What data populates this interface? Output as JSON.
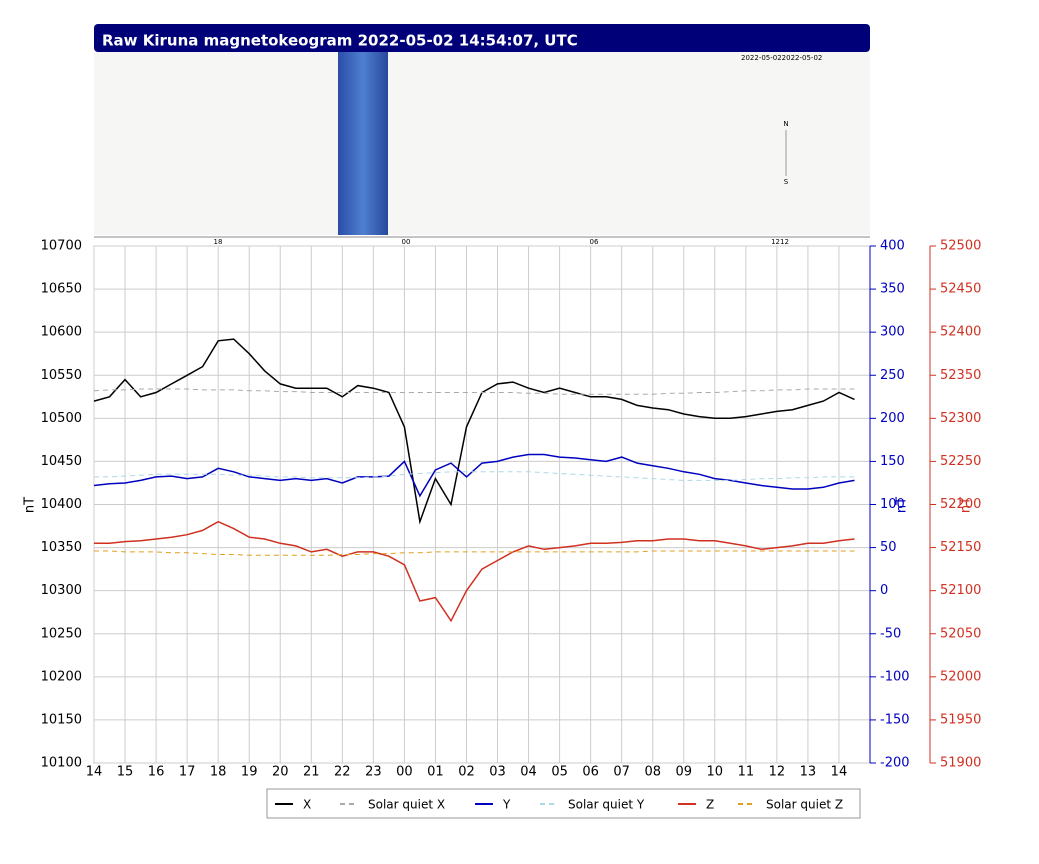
{
  "chart_data": {
    "type": "line",
    "title": "Raw Kiruna magnetokeogram 2022-05-02 14:54:07, UTC",
    "ylabel": "nT",
    "y2label": "nT",
    "y3label": "nT",
    "x": [
      0,
      0.5,
      1,
      1.5,
      2,
      2.5,
      3,
      3.5,
      4,
      4.5,
      5,
      5.5,
      6,
      6.5,
      7,
      7.5,
      8,
      8.5,
      9,
      9.5,
      10,
      10.5,
      11,
      11.5,
      12,
      12.5,
      13,
      13.5,
      14,
      14.5,
      15,
      15.5,
      16,
      16.5,
      17,
      17.5,
      18,
      18.5,
      19,
      19.5,
      20,
      20.5,
      21,
      21.5,
      22,
      22.5,
      23,
      23.5,
      24,
      24.5
    ],
    "xlim": [
      0,
      25
    ],
    "xticks": [
      {
        "value": 0,
        "label": "14"
      },
      {
        "value": 1,
        "label": "15"
      },
      {
        "value": 2,
        "label": "16"
      },
      {
        "value": 3,
        "label": "17"
      },
      {
        "value": 4,
        "label": "18"
      },
      {
        "value": 5,
        "label": "19"
      },
      {
        "value": 6,
        "label": "20"
      },
      {
        "value": 7,
        "label": "21"
      },
      {
        "value": 8,
        "label": "22"
      },
      {
        "value": 9,
        "label": "23"
      },
      {
        "value": 10,
        "label": "00"
      },
      {
        "value": 11,
        "label": "01"
      },
      {
        "value": 12,
        "label": "02"
      },
      {
        "value": 13,
        "label": "03"
      },
      {
        "value": 14,
        "label": "04"
      },
      {
        "value": 15,
        "label": "05"
      },
      {
        "value": 16,
        "label": "06"
      },
      {
        "value": 17,
        "label": "07"
      },
      {
        "value": 18,
        "label": "08"
      },
      {
        "value": 19,
        "label": "09"
      },
      {
        "value": 20,
        "label": "10"
      },
      {
        "value": 21,
        "label": "11"
      },
      {
        "value": 22,
        "label": "12"
      },
      {
        "value": 23,
        "label": "13"
      },
      {
        "value": 24,
        "label": "14"
      }
    ],
    "ylim": [
      10100,
      10700
    ],
    "yticks": [
      10100,
      10150,
      10200,
      10250,
      10300,
      10350,
      10400,
      10450,
      10500,
      10550,
      10600,
      10650,
      10700
    ],
    "y2lim": [
      -200,
      400
    ],
    "y2color": "#0000c0",
    "y2ticks": [
      -200,
      -150,
      -100,
      -50,
      0,
      50,
      100,
      150,
      200,
      250,
      300,
      350,
      400
    ],
    "y3lim": [
      51900,
      52500
    ],
    "y3color": "#d03020",
    "y3ticks": [
      51900,
      51950,
      52000,
      52050,
      52100,
      52150,
      52200,
      52250,
      52300,
      52350,
      52400,
      52450,
      52500
    ],
    "grid": true,
    "series": [
      {
        "name": "X",
        "color": "#000000",
        "axis": "y",
        "dashed": false,
        "values": [
          10520,
          10525,
          10545,
          10525,
          10530,
          10540,
          10550,
          10560,
          10590,
          10592,
          10575,
          10555,
          10540,
          10535,
          10535,
          10535,
          10525,
          10538,
          10535,
          10530,
          10490,
          10380,
          10430,
          10400,
          10490,
          10530,
          10540,
          10542,
          10535,
          10530,
          10535,
          10530,
          10525,
          10525,
          10522,
          10515,
          10512,
          10510,
          10505,
          10502,
          10500,
          10500,
          10502,
          10505,
          10508,
          10510,
          10515,
          10520,
          10530,
          10522
        ]
      },
      {
        "name": "Solar quiet X",
        "color": "#aaaaaa",
        "axis": "y",
        "dashed": true,
        "values": [
          10532,
          10533,
          10533,
          10534,
          10534,
          10534,
          10534,
          10533,
          10533,
          10533,
          10532,
          10532,
          10531,
          10531,
          10530,
          10530,
          10530,
          10530,
          10530,
          10530,
          10530,
          10530,
          10530,
          10530,
          10530,
          10530,
          10530,
          10530,
          10529,
          10529,
          10528,
          10528,
          10528,
          10528,
          10528,
          10528,
          10528,
          10529,
          10529,
          10530,
          10530,
          10531,
          10532,
          10532,
          10533,
          10533,
          10534,
          10534,
          10534,
          10534
        ]
      },
      {
        "name": "Y",
        "color": "#0000c0",
        "axis": "y2",
        "dashed": false,
        "values": [
          122,
          124,
          125,
          128,
          132,
          133,
          130,
          132,
          142,
          138,
          132,
          130,
          128,
          130,
          128,
          130,
          125,
          132,
          132,
          133,
          150,
          110,
          140,
          148,
          132,
          148,
          150,
          155,
          158,
          158,
          155,
          154,
          152,
          150,
          155,
          148,
          145,
          142,
          138,
          135,
          130,
          128,
          125,
          122,
          120,
          118,
          118,
          120,
          125,
          128
        ]
      },
      {
        "name": "Solar quiet Y",
        "color": "#add8e6",
        "axis": "y2",
        "dashed": true,
        "values": [
          132,
          132,
          133,
          134,
          135,
          135,
          135,
          135,
          135,
          134,
          134,
          133,
          132,
          132,
          131,
          131,
          131,
          131,
          132,
          133,
          135,
          136,
          137,
          138,
          138,
          138,
          138,
          138,
          138,
          137,
          136,
          135,
          134,
          133,
          132,
          131,
          130,
          129,
          128,
          128,
          128,
          128,
          129,
          130,
          130,
          131,
          131,
          132,
          132,
          132
        ]
      },
      {
        "name": "Z",
        "color": "#d03020",
        "axis": "y3",
        "dashed": false,
        "values": [
          52155,
          52155,
          52157,
          52158,
          52160,
          52162,
          52165,
          52170,
          52180,
          52172,
          52162,
          52160,
          52155,
          52152,
          52145,
          52148,
          52140,
          52145,
          52145,
          52140,
          52130,
          52088,
          52092,
          52065,
          52100,
          52125,
          52135,
          52145,
          52152,
          52148,
          52150,
          52152,
          52155,
          52155,
          52156,
          52158,
          52158,
          52160,
          52160,
          52158,
          52158,
          52155,
          52152,
          52148,
          52150,
          52152,
          52155,
          52155,
          52158,
          52160
        ]
      },
      {
        "name": "Solar quiet Z",
        "color": "#e0a020",
        "axis": "y3",
        "dashed": true,
        "values": [
          52146,
          52146,
          52145,
          52145,
          52145,
          52144,
          52144,
          52143,
          52142,
          52142,
          52141,
          52141,
          52141,
          52141,
          52141,
          52141,
          52142,
          52142,
          52143,
          52143,
          52144,
          52144,
          52145,
          52145,
          52145,
          52145,
          52145,
          52145,
          52145,
          52145,
          52145,
          52145,
          52145,
          52145,
          52145,
          52145,
          52146,
          52146,
          52146,
          52146,
          52146,
          52146,
          52146,
          52146,
          52146,
          52146,
          52146,
          52146,
          52146,
          52146
        ]
      }
    ]
  },
  "keogram": {
    "date_label": "2022-05-022022-05-02",
    "north": "N",
    "south": "S",
    "ticks": [
      "18",
      "00",
      "06",
      "1212"
    ]
  }
}
